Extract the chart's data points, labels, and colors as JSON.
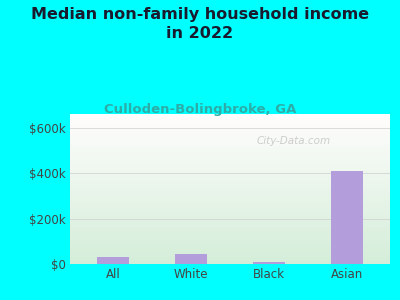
{
  "title": "Median non-family household income\nin 2022",
  "subtitle": "Culloden-Bolingbroke, GA",
  "categories": [
    "All",
    "White",
    "Black",
    "Asian"
  ],
  "values": [
    30000,
    42000,
    10000,
    410000
  ],
  "bar_color": "#b39ddb",
  "background_color": "#00ffff",
  "title_color": "#1a1a2e",
  "subtitle_color": "#2dada8",
  "tick_color": "#444444",
  "ylabel_ticks": [
    0,
    200000,
    400000,
    600000
  ],
  "ylabel_labels": [
    "$0",
    "$200k",
    "$400k",
    "$600k"
  ],
  "ylim": [
    0,
    660000
  ],
  "watermark": "City-Data.com",
  "title_fontsize": 11.5,
  "subtitle_fontsize": 9.5,
  "tick_fontsize": 8.5,
  "bar_width": 0.42
}
